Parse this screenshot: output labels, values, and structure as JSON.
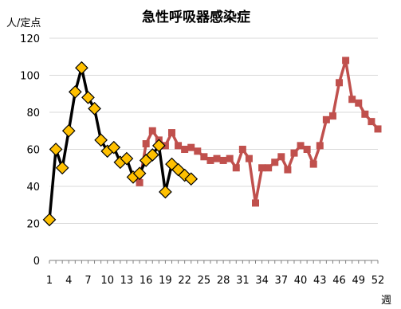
{
  "chart_data": {
    "type": "line",
    "title": "急性呼吸器感染症",
    "ylabel": "人/定点",
    "xlabel": "週",
    "ylim": [
      0,
      120
    ],
    "yticks": [
      0,
      20,
      40,
      60,
      80,
      100,
      120
    ],
    "xticks": [
      1,
      4,
      7,
      10,
      13,
      16,
      19,
      22,
      25,
      28,
      31,
      34,
      37,
      40,
      43,
      46,
      49,
      52
    ],
    "xlim": [
      1,
      52
    ],
    "grid": true,
    "legend": "none",
    "series": [
      {
        "color": "#c0504d",
        "marker": "square",
        "x": [
          15,
          16,
          17,
          18,
          19,
          20,
          21,
          22,
          23,
          24,
          25,
          26,
          27,
          28,
          29,
          30,
          31,
          32,
          33,
          34,
          35,
          36,
          37,
          38,
          39,
          40,
          41,
          42,
          43,
          44,
          45,
          46,
          47,
          48,
          49,
          50,
          51,
          52
        ],
        "values": [
          42,
          63,
          70,
          65,
          62,
          69,
          62,
          60,
          61,
          59,
          56,
          54,
          55,
          54,
          55,
          50,
          60,
          55,
          31,
          50,
          50,
          53,
          56,
          49,
          58,
          62,
          60,
          52,
          62,
          76,
          78,
          96,
          108,
          87,
          85,
          79,
          75,
          71
        ]
      },
      {
        "color": "#000000",
        "marker": "diamond",
        "marker_fill": "#ffc000",
        "x": [
          1,
          2,
          3,
          4,
          5,
          6,
          7,
          8,
          9,
          10,
          11,
          12,
          13,
          14,
          15,
          16,
          17,
          18,
          19,
          20,
          21,
          22,
          23
        ],
        "values": [
          22,
          60,
          50,
          70,
          91,
          104,
          88,
          82,
          65,
          59,
          61,
          53,
          55,
          45,
          47,
          54,
          57,
          62,
          37,
          52,
          49,
          46,
          44
        ]
      }
    ]
  }
}
